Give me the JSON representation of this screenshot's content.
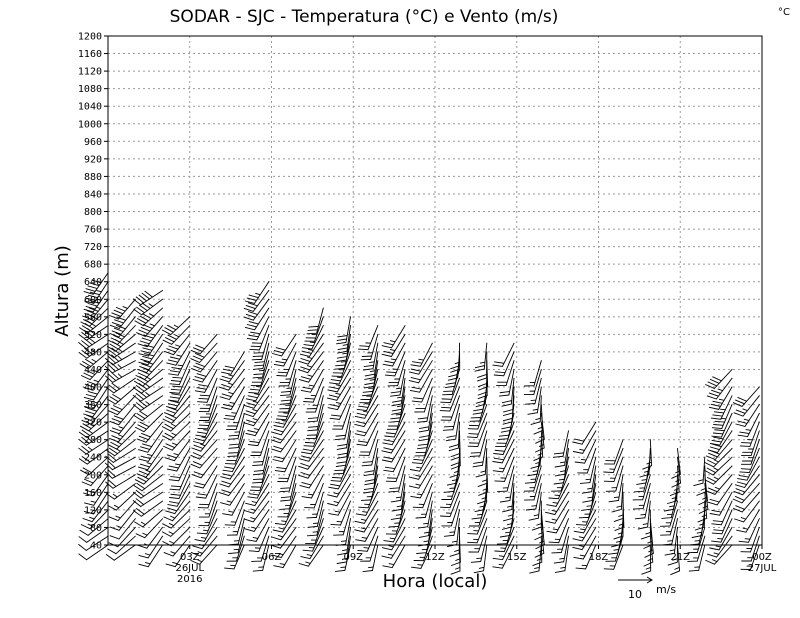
{
  "chart_data": {
    "type": "wind-barbs",
    "title": "SODAR - SJC - Temperatura (°C) e Vento (m/s)",
    "corner_label": "°C",
    "ylabel": "Altura (m)",
    "xlabel": "Hora (local)",
    "ylim": [
      40,
      1200
    ],
    "y_ticks": [
      40,
      80,
      120,
      160,
      200,
      240,
      280,
      320,
      360,
      400,
      440,
      480,
      520,
      560,
      600,
      640,
      680,
      720,
      760,
      800,
      840,
      880,
      920,
      960,
      1000,
      1040,
      1080,
      1120,
      1160,
      1200
    ],
    "x_ticks": [
      {
        "hour": 3,
        "label": "03Z",
        "sub1": "26JUL",
        "sub2": "2016"
      },
      {
        "hour": 6,
        "label": "06Z"
      },
      {
        "hour": 9,
        "label": "09Z"
      },
      {
        "hour": 12,
        "label": "12Z"
      },
      {
        "hour": 15,
        "label": "15Z"
      },
      {
        "hour": 18,
        "label": "18Z"
      },
      {
        "hour": 21,
        "label": "21Z"
      },
      {
        "hour": 24,
        "label": "00Z",
        "sub1": "27JUL"
      }
    ],
    "x_range_hours": [
      0,
      24
    ],
    "reference_vector": {
      "speed": 10,
      "label": "10",
      "units": "m/s"
    },
    "series": [
      {
        "hour": 0.0,
        "top": 660,
        "spd_low": 2,
        "spd_high": 10,
        "dir": 225
      },
      {
        "hour": 1.0,
        "top": 600,
        "spd_low": 2,
        "spd_high": 9,
        "dir": 230
      },
      {
        "hour": 2.0,
        "top": 620,
        "spd_low": 3,
        "spd_high": 10,
        "dir": 225
      },
      {
        "hour": 3.0,
        "top": 570,
        "spd_low": 3,
        "spd_high": 8,
        "dir": 215
      },
      {
        "hour": 4.0,
        "top": 530,
        "spd_low": 3,
        "spd_high": 7,
        "dir": 210
      },
      {
        "hour": 5.0,
        "top": 480,
        "spd_low": 3,
        "spd_high": 6,
        "dir": 205
      },
      {
        "hour": 5.9,
        "top": 640,
        "spd_low": 3,
        "spd_high": 7,
        "dir": 205
      },
      {
        "hour": 6.9,
        "top": 520,
        "spd_low": 3,
        "spd_high": 6,
        "dir": 205
      },
      {
        "hour": 7.9,
        "top": 580,
        "spd_low": 3,
        "spd_high": 6,
        "dir": 205
      },
      {
        "hour": 8.9,
        "top": 560,
        "spd_low": 3,
        "spd_high": 6,
        "dir": 200
      },
      {
        "hour": 9.9,
        "top": 550,
        "spd_low": 3,
        "spd_high": 6,
        "dir": 200
      },
      {
        "hour": 10.9,
        "top": 550,
        "spd_low": 3,
        "spd_high": 6,
        "dir": 200
      },
      {
        "hour": 11.9,
        "top": 500,
        "spd_low": 3,
        "spd_high": 5,
        "dir": 200
      },
      {
        "hour": 12.9,
        "top": 500,
        "spd_low": 3,
        "spd_high": 5,
        "dir": 190
      },
      {
        "hour": 13.9,
        "top": 500,
        "spd_low": 3,
        "spd_high": 5,
        "dir": 190
      },
      {
        "hour": 14.9,
        "top": 510,
        "spd_low": 3,
        "spd_high": 5,
        "dir": 195
      },
      {
        "hour": 15.9,
        "top": 470,
        "spd_low": 3,
        "spd_high": 4,
        "dir": 185
      },
      {
        "hour": 16.9,
        "top": 300,
        "spd_low": 3,
        "spd_high": 4,
        "dir": 200
      },
      {
        "hour": 17.9,
        "top": 320,
        "spd_low": 3,
        "spd_high": 4,
        "dir": 200
      },
      {
        "hour": 18.9,
        "top": 280,
        "spd_low": 3,
        "spd_high": 4,
        "dir": 190
      },
      {
        "hour": 19.9,
        "top": 290,
        "spd_low": 3,
        "spd_high": 4,
        "dir": 185
      },
      {
        "hour": 20.9,
        "top": 270,
        "spd_low": 3,
        "spd_high": 4,
        "dir": 185
      },
      {
        "hour": 21.9,
        "top": 250,
        "spd_low": 3,
        "spd_high": 4,
        "dir": 185
      },
      {
        "hour": 22.9,
        "top": 440,
        "spd_low": 3,
        "spd_high": 8,
        "dir": 215
      },
      {
        "hour": 23.9,
        "top": 400,
        "spd_low": 3,
        "spd_high": 6,
        "dir": 210
      }
    ]
  }
}
